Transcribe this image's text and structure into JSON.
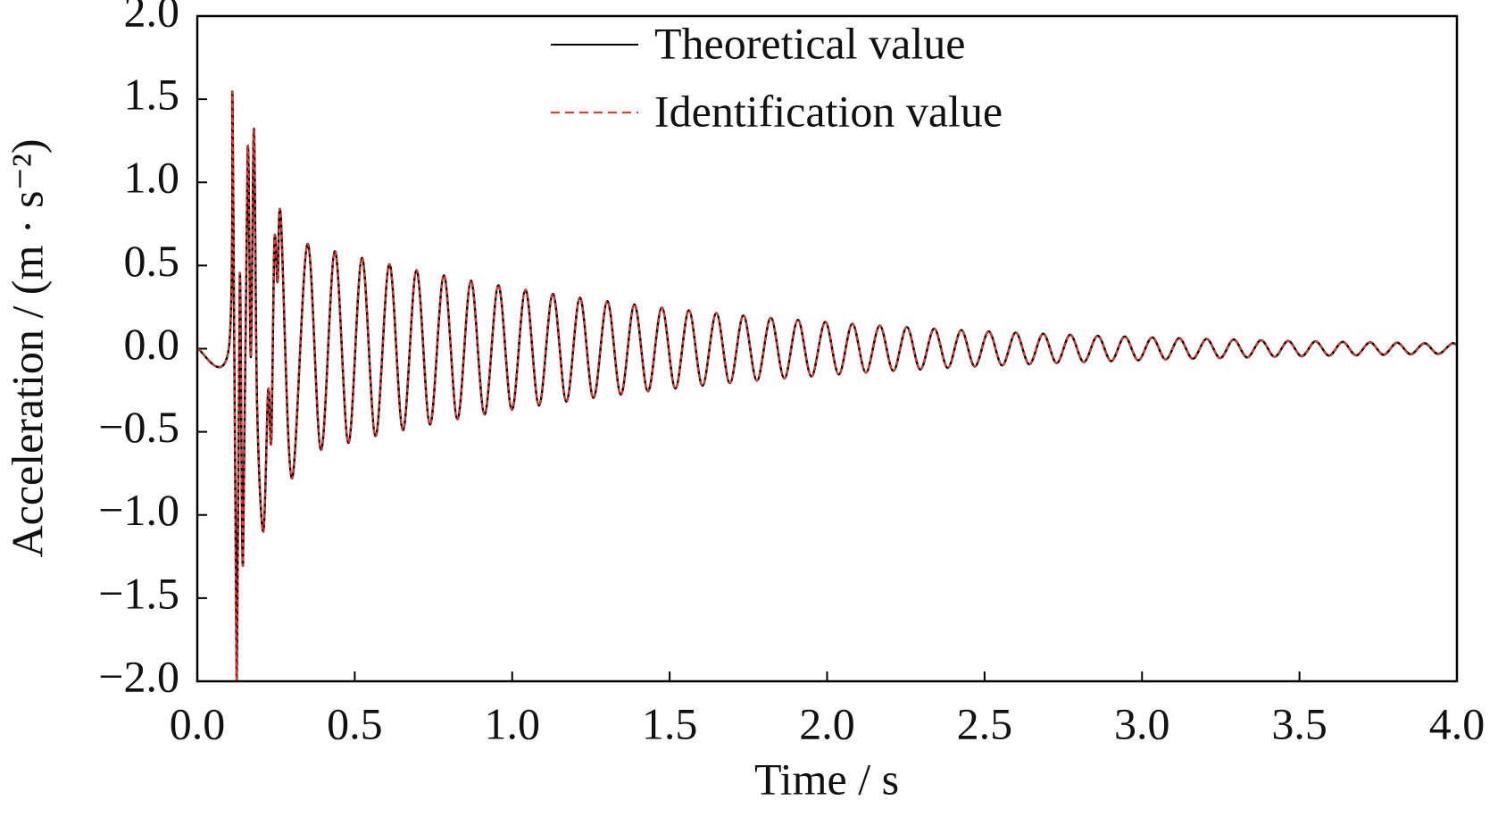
{
  "chart_data": {
    "type": "line",
    "xlabel": "Time / s",
    "ylabel": "Acceleration / (m · s⁻²)",
    "legend": "upper center",
    "x": [
      0,
      0.1,
      0.112,
      0.125,
      0.135,
      0.145,
      0.16,
      0.17,
      0.18,
      0.19,
      0.21,
      0.225,
      0.235,
      0.245,
      0.255,
      0.265,
      0.3,
      0.35,
      0.393,
      0.437,
      0.48,
      0.523,
      0.566,
      0.61,
      0.653,
      0.696,
      0.739,
      0.783,
      0.826,
      0.869,
      0.912,
      0.956,
      0.999,
      1.042,
      1.085,
      1.129,
      1.172,
      1.215,
      1.258,
      1.302,
      1.345,
      1.388,
      1.431,
      1.475,
      1.518,
      1.561,
      1.604,
      1.648,
      1.691,
      1.734,
      1.777,
      1.821,
      1.864,
      1.907,
      1.95,
      1.994,
      2.037,
      2.08,
      2.123,
      2.167,
      2.21,
      2.253,
      2.296,
      2.34,
      2.383,
      2.426,
      2.469,
      2.513,
      2.556,
      2.599,
      2.642,
      2.686,
      2.729,
      2.772,
      2.815,
      2.859,
      2.902,
      2.945,
      2.988,
      3.032,
      3.075,
      3.118,
      3.161,
      3.205,
      3.248,
      3.291,
      3.334,
      3.378,
      3.421,
      3.464,
      3.507,
      3.551,
      3.594,
      3.637,
      3.68,
      3.724,
      3.767,
      3.81,
      3.853,
      3.897,
      3.94,
      3.983,
      4.0
    ],
    "series": [
      {
        "name": "Theoretical value",
        "color": "#000000",
        "dashed": false,
        "values": [
          0,
          0,
          1.5,
          -2.0,
          0.45,
          -1.3,
          1.2,
          -0.05,
          1.32,
          -0.35,
          -1.1,
          -0.25,
          -0.55,
          0.65,
          0.4,
          0.8,
          -0.78,
          0.63,
          -0.608,
          0.586,
          -0.566,
          0.546,
          -0.526,
          0.508,
          -0.49,
          0.472,
          -0.456,
          0.44,
          -0.424,
          0.409,
          -0.395,
          0.381,
          -0.367,
          0.354,
          -0.342,
          0.33,
          -0.318,
          0.307,
          -0.296,
          0.286,
          -0.276,
          0.266,
          -0.257,
          0.247,
          -0.239,
          0.23,
          -0.222,
          0.214,
          -0.207,
          0.199,
          -0.192,
          0.186,
          -0.179,
          0.173,
          -0.167,
          0.161,
          -0.155,
          0.15,
          -0.144,
          0.139,
          -0.134,
          0.13,
          -0.125,
          0.121,
          -0.116,
          0.112,
          -0.108,
          0.104,
          -0.101,
          0.097,
          -0.094,
          0.09,
          -0.087,
          0.084,
          -0.081,
          0.078,
          -0.075,
          0.073,
          -0.07,
          0.068,
          -0.065,
          0.063,
          -0.061,
          0.059,
          -0.057,
          0.055,
          -0.053,
          0.051,
          -0.049,
          0.047,
          -0.046,
          0.044,
          -0.042,
          0.041,
          -0.04,
          0.038,
          -0.037,
          0.036,
          -0.034,
          0.033,
          -0.032,
          0.031,
          0.02
        ]
      },
      {
        "name": "Identification value",
        "color": "#e8392f",
        "dashed": true,
        "values": [
          0,
          0,
          1.5,
          -2.0,
          0.45,
          -1.3,
          1.2,
          -0.05,
          1.32,
          -0.35,
          -1.1,
          -0.25,
          -0.55,
          0.65,
          0.4,
          0.8,
          -0.78,
          0.63,
          -0.608,
          0.586,
          -0.566,
          0.546,
          -0.526,
          0.508,
          -0.49,
          0.472,
          -0.456,
          0.44,
          -0.424,
          0.409,
          -0.395,
          0.381,
          -0.367,
          0.354,
          -0.342,
          0.33,
          -0.318,
          0.307,
          -0.296,
          0.286,
          -0.276,
          0.266,
          -0.257,
          0.247,
          -0.239,
          0.23,
          -0.222,
          0.214,
          -0.207,
          0.199,
          -0.192,
          0.186,
          -0.179,
          0.173,
          -0.167,
          0.161,
          -0.155,
          0.15,
          -0.144,
          0.139,
          -0.134,
          0.13,
          -0.125,
          0.121,
          -0.116,
          0.112,
          -0.108,
          0.104,
          -0.101,
          0.097,
          -0.094,
          0.09,
          -0.087,
          0.084,
          -0.081,
          0.078,
          -0.075,
          0.073,
          -0.07,
          0.068,
          -0.065,
          0.063,
          -0.061,
          0.059,
          -0.057,
          0.055,
          -0.053,
          0.051,
          -0.049,
          0.047,
          -0.046,
          0.044,
          -0.042,
          0.041,
          -0.04,
          0.038,
          -0.037,
          0.036,
          -0.034,
          0.033,
          -0.032,
          0.031,
          0.02
        ]
      }
    ],
    "xlim": [
      0,
      4
    ],
    "xticks": [
      {
        "value": 0,
        "label": "0.0"
      },
      0.5,
      {
        "value": 1,
        "label": "1.0"
      },
      1.5,
      {
        "value": 2,
        "label": "2.0"
      },
      2.5,
      {
        "value": 3,
        "label": "3.0"
      },
      3.5,
      {
        "value": 4,
        "label": "4.0"
      }
    ],
    "ylim": [
      -2,
      2
    ],
    "yticks": [
      {
        "value": -2,
        "label": "−2.0"
      },
      {
        "value": -1.5,
        "label": "−1.5"
      },
      {
        "value": -1,
        "label": "−1.0"
      },
      {
        "value": -0.5,
        "label": "−0.5"
      },
      {
        "value": 0,
        "label": "0.0"
      },
      0.5,
      {
        "value": 1,
        "label": "1.0"
      },
      1.5,
      {
        "value": 2,
        "label": "2.0"
      }
    ],
    "grid": false
  }
}
